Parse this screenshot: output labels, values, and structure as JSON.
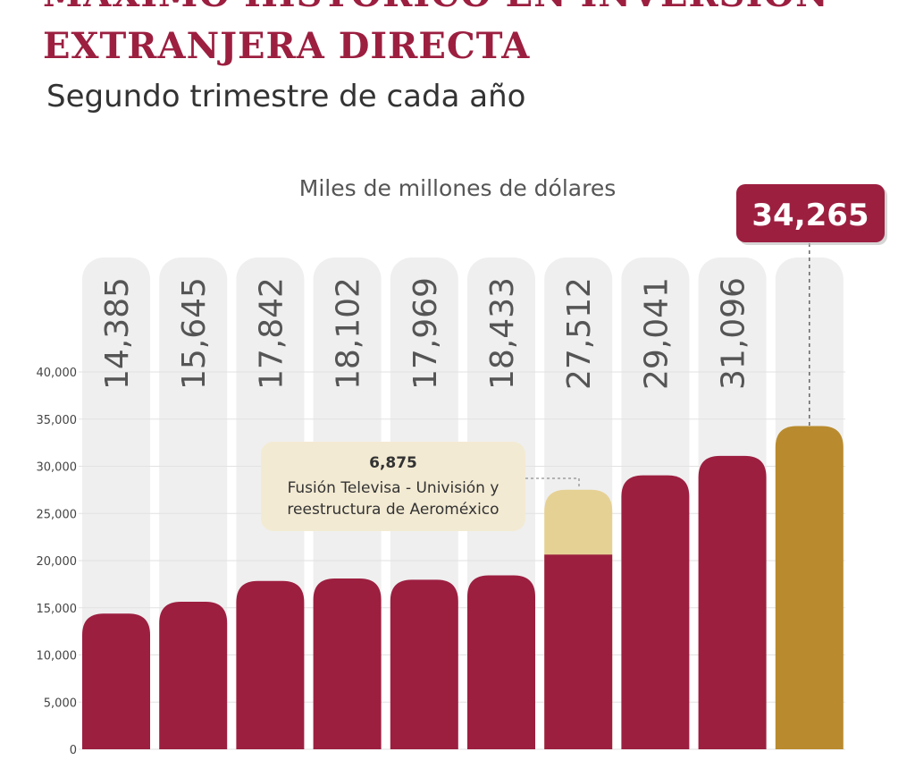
{
  "header": {
    "title_line1": "MÁXIMO HISTÓRICO EN INVERSIÓN",
    "title_line2": "EXTRANJERA DIRECTA",
    "subtitle": "Segundo trimestre de cada año"
  },
  "chart_data": {
    "type": "bar",
    "title": "MÁXIMO HISTÓRICO EN INVERSIÓN EXTRANJERA DIRECTA",
    "subtitle": "Segundo trimestre de cada año",
    "ylabel": "Miles de millones de dólares",
    "xlabel": "",
    "ylim": [
      0,
      40000
    ],
    "yticks": [
      0,
      5000,
      10000,
      15000,
      20000,
      25000,
      30000,
      35000,
      40000
    ],
    "ytick_labels": [
      "0",
      "5,000",
      "10,000",
      "15,000",
      "20,000",
      "25,000",
      "30,000",
      "35,000",
      "40,000"
    ],
    "grid": true,
    "values": [
      14385,
      15645,
      17842,
      18102,
      17969,
      18433,
      27512,
      29041,
      31096,
      34265
    ],
    "value_labels": [
      "14,385",
      "15,645",
      "17,842",
      "18,102",
      "17,969",
      "18,433",
      "27,512",
      "29,041",
      "31,096",
      "34,265"
    ],
    "highlight_index": 9,
    "stacked_segment": {
      "bar_index": 6,
      "value": 6875,
      "value_label": "6,875",
      "note_line1": "Fusión Televisa - Univisión y",
      "note_line2": "reestructura de Aeroméxico"
    },
    "colors": {
      "bar": "#9c1f40",
      "highlight": "#b98b2e",
      "segment": "#e6d195",
      "track": "#efefef",
      "annotation_bg": "#f3ead3",
      "grid": "#e2e2e2"
    }
  }
}
